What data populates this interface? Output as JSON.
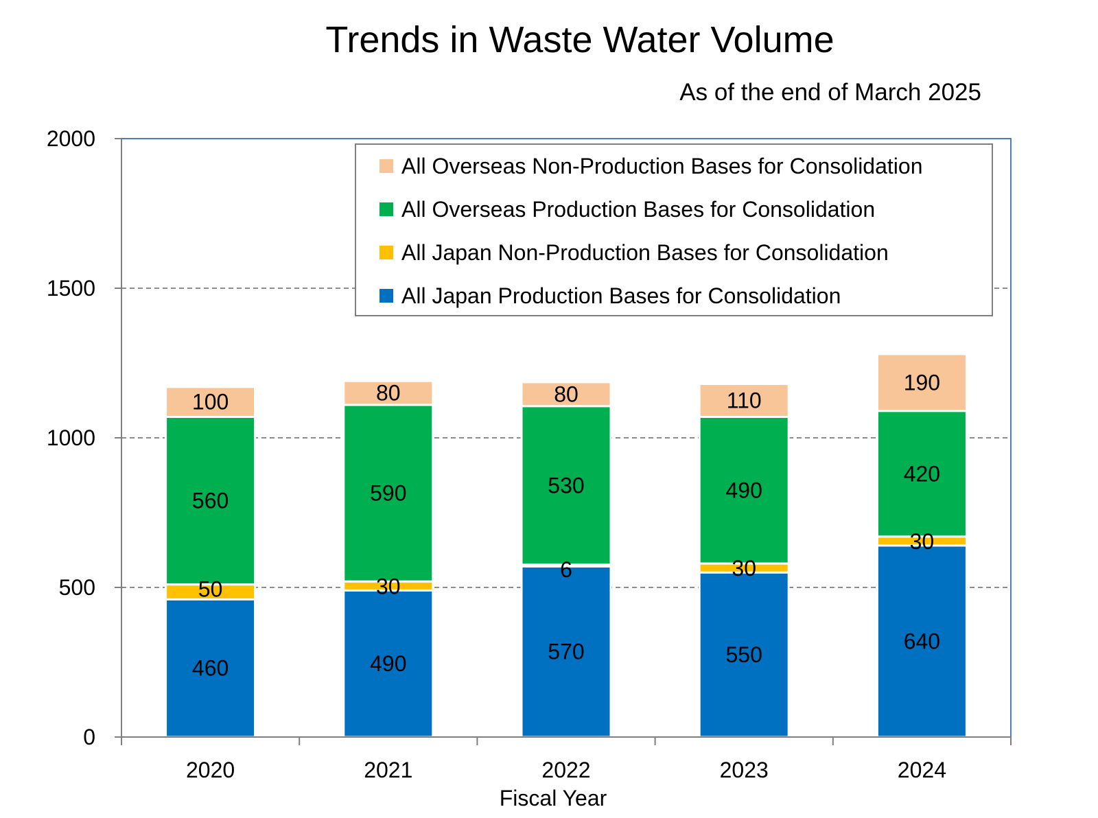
{
  "chart_data": {
    "type": "bar",
    "stacked": true,
    "title": "Trends in Waste Water Volume",
    "subtitle": "As of the end of March 2025",
    "xlabel": "Fiscal Year",
    "ylabel": "",
    "categories": [
      "2020",
      "2021",
      "2022",
      "2023",
      "2024"
    ],
    "ylim": [
      0,
      2000
    ],
    "yticks": [
      0,
      500,
      1000,
      1500,
      2000
    ],
    "grid": "horizontal dashed",
    "legend_position": "top-right",
    "series": [
      {
        "name": "All Japan Production Bases for Consolidation",
        "color": "#0070C0",
        "values": [
          460,
          490,
          570,
          550,
          640
        ]
      },
      {
        "name": "All Japan Non-Production Bases for Consolidation",
        "color": "#FFC000",
        "values": [
          50,
          30,
          6,
          30,
          30
        ]
      },
      {
        "name": "All Overseas Production Bases for Consolidation",
        "color": "#00B050",
        "values": [
          560,
          590,
          530,
          490,
          420
        ]
      },
      {
        "name": "All Overseas Non-Production Bases for Consolidation",
        "color": "#F8C598",
        "values": [
          100,
          80,
          80,
          110,
          190
        ]
      }
    ],
    "legend_order": [
      3,
      2,
      1,
      0
    ]
  }
}
